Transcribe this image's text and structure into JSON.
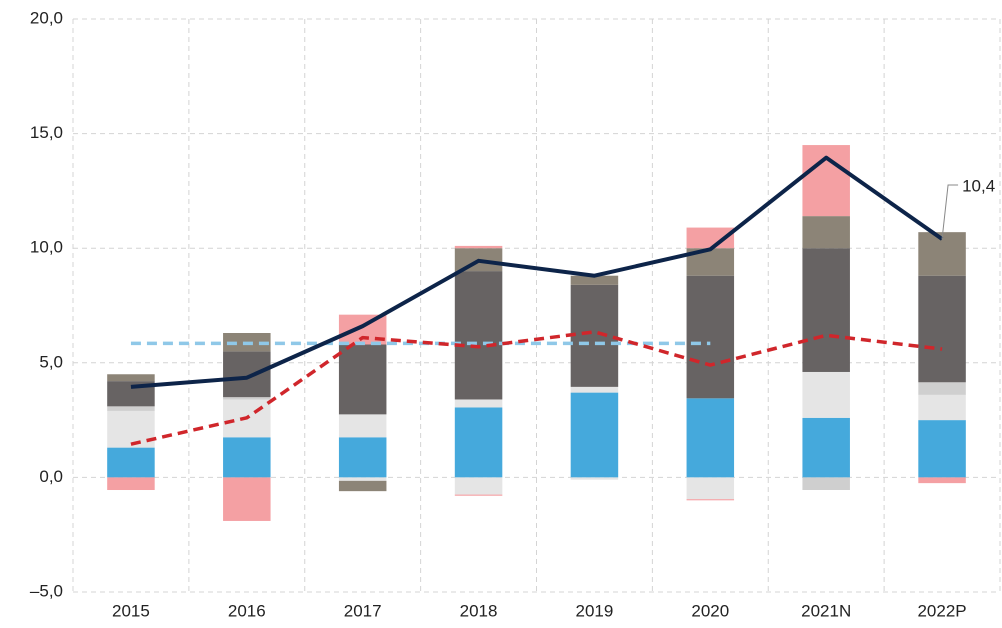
{
  "chart_data": {
    "type": "bar",
    "stacked": true,
    "grid": true,
    "categories": [
      "2015",
      "2016",
      "2017",
      "2018",
      "2019",
      "2020",
      "2021N",
      "2022P"
    ],
    "ylim": [
      -5,
      20
    ],
    "yticks": [
      {
        "value": -5,
        "label": "–5,0"
      },
      {
        "value": 0,
        "label": "0,0"
      },
      {
        "value": 5,
        "label": "5,0"
      },
      {
        "value": 10,
        "label": "10,0"
      },
      {
        "value": 15,
        "label": "15,0"
      },
      {
        "value": 20,
        "label": "20,0"
      }
    ],
    "series": [
      {
        "type": "bar",
        "color": "#45a9dc",
        "values": [
          1.3,
          1.75,
          1.75,
          3.05,
          3.7,
          3.45,
          2.6,
          2.5
        ]
      },
      {
        "type": "bar",
        "color": "#e5e5e5",
        "values": [
          1.6,
          1.65,
          1.0,
          0.35,
          0.25,
          null,
          2.0,
          1.1
        ]
      },
      {
        "type": "bar",
        "color": "#cfcfcf",
        "values": [
          0.2,
          0.1,
          null,
          null,
          null,
          null,
          null,
          0.55
        ]
      },
      {
        "type": "bar",
        "color": "#676363",
        "values": [
          1.1,
          2.0,
          3.05,
          5.6,
          4.45,
          5.35,
          5.4,
          4.65
        ]
      },
      {
        "type": "bar",
        "color": "#8c8477",
        "values": [
          0.3,
          0.8,
          null,
          1.0,
          0.4,
          1.2,
          1.4,
          1.9
        ]
      },
      {
        "type": "bar",
        "color": "#f4a0a3",
        "values": [
          null,
          null,
          1.3,
          0.1,
          null,
          0.9,
          3.1,
          null
        ]
      },
      {
        "type": "bar",
        "color": "#e5e5e5",
        "values": [
          null,
          null,
          -0.15,
          -0.75,
          -0.1,
          -0.95,
          null,
          null
        ]
      },
      {
        "type": "bar",
        "color": "#cfcfcf",
        "values": [
          null,
          null,
          null,
          null,
          null,
          null,
          -0.55,
          null
        ]
      },
      {
        "type": "bar",
        "color": "#8c8477",
        "values": [
          null,
          null,
          -0.45,
          null,
          null,
          null,
          null,
          null
        ]
      },
      {
        "type": "bar",
        "color": "#f4a0a3",
        "values": [
          -0.55,
          -1.9,
          null,
          -0.05,
          null,
          -0.05,
          null,
          -0.25
        ]
      },
      {
        "type": "line",
        "color": "#8fc8e8",
        "style": "dashed",
        "values": [
          5.85,
          5.85,
          5.85,
          5.85,
          5.85,
          5.85,
          null,
          null
        ]
      },
      {
        "type": "line",
        "color": "#d0262b",
        "style": "dashed",
        "values": [
          1.45,
          2.6,
          6.1,
          5.7,
          6.35,
          4.9,
          6.2,
          5.6
        ]
      },
      {
        "type": "line",
        "color": "#0d2449",
        "style": "solid",
        "values": [
          3.95,
          4.35,
          6.6,
          9.45,
          8.8,
          9.95,
          13.95,
          10.4
        ],
        "value_labels": [
          null,
          null,
          null,
          null,
          null,
          null,
          null,
          "10,4"
        ]
      }
    ]
  }
}
